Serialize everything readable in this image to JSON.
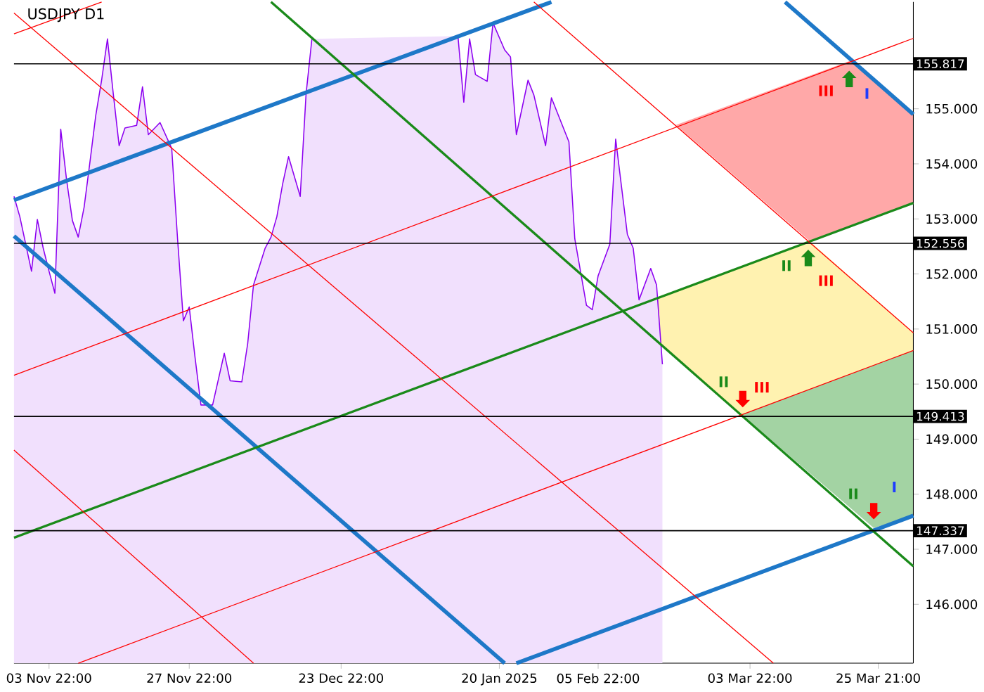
{
  "chart_data": {
    "type": "line",
    "title": "USDJPY D1",
    "xlim": [
      "2024-10-28T22:00",
      "2025-03-31T21:00"
    ],
    "ylim": [
      144.93,
      156.94
    ],
    "xticks": [
      {
        "value": "2024-11-03T22:00",
        "label": "03 Nov 22:00"
      },
      {
        "value": "2024-11-27T22:00",
        "label": "27 Nov 22:00"
      },
      {
        "value": "2024-12-23T22:00",
        "label": "23 Dec 22:00"
      },
      {
        "value": "2025-01-20",
        "label": "20 Jan 2025"
      },
      {
        "value": "2025-02-05T22:00",
        "label": "05 Feb 22:00"
      },
      {
        "value": "2025-03-03T22:00",
        "label": "03 Mar 22:00"
      },
      {
        "value": "2025-03-25T21:00",
        "label": "25 Mar 21:00"
      }
    ],
    "yticks": [
      {
        "value": 146,
        "label": "146.000"
      },
      {
        "value": 147,
        "label": "147.000"
      },
      {
        "value": 148,
        "label": "148.000"
      },
      {
        "value": 149,
        "label": "149.000"
      },
      {
        "value": 150,
        "label": "150.000"
      },
      {
        "value": 151,
        "label": "151.000"
      },
      {
        "value": 152,
        "label": "152.000"
      },
      {
        "value": 153,
        "label": "153.000"
      },
      {
        "value": 154,
        "label": "154.000"
      },
      {
        "value": 155,
        "label": "155.000"
      }
    ],
    "series": [
      {
        "type": "area",
        "color": "#8c00f0",
        "x": [
          "2024-10-28T22:00",
          "2024-10-29T22:00",
          "2024-10-31T22:00",
          "2024-11-01T22:00",
          "2024-11-02T22:00",
          "2024-11-03T22:00",
          "2024-11-04T22:00",
          "2024-11-05T22:00",
          "2024-11-06T22:00",
          "2024-11-07T22:00",
          "2024-11-08T22:00",
          "2024-11-09T22:00",
          "2024-11-10T22:00",
          "2024-11-11T22:00",
          "2024-11-12T22:00",
          "2024-11-13T22:00",
          "2024-11-14T22:00",
          "2024-11-15T22:00",
          "2024-11-16T22:00",
          "2024-11-18T22:00",
          "2024-11-19T22:00",
          "2024-11-20T22:00",
          "2024-11-22T22:00",
          "2024-11-24T22:00",
          "2024-11-25T22:00",
          "2024-11-26T22:00",
          "2024-11-27T22:00",
          "2024-11-28T22:00",
          "2024-11-29T22:00",
          "2024-12-01T22:00",
          "2024-12-03T22:00",
          "2024-12-04T22:00",
          "2024-12-06T22:00",
          "2024-12-07T22:00",
          "2024-12-08T22:00",
          "2024-12-10T22:00",
          "2024-12-11T22:00",
          "2024-12-12T22:00",
          "2024-12-13T22:00",
          "2024-12-14T22:00",
          "2024-12-16T22:00",
          "2024-12-17T22:00",
          "2024-12-18T22:00",
          "2024-12-19T22:00",
          "2024-12-20T22:00",
          "2024-12-21T22:00",
          "2025-01-01T22:00",
          "2025-01-11T22:00",
          "2025-01-12T22:00",
          "2025-01-13T22:00",
          "2025-01-14T22:00",
          "2025-01-15T22:00",
          "2025-01-17T22:00",
          "2025-01-18T22:00",
          "2025-01-20T22:00",
          "2025-01-21T22:00",
          "2025-01-22T22:00",
          "2025-01-24T22:00",
          "2025-01-25T22:00",
          "2025-01-27T22:00",
          "2025-01-28T22:00",
          "2025-01-31T22:00",
          "2025-02-01T22:00",
          "2025-02-03T22:00",
          "2025-02-04T22:00",
          "2025-02-05T22:00",
          "2025-02-07T22:00",
          "2025-02-08T22:00",
          "2025-02-10T22:00",
          "2025-02-11T22:00",
          "2025-02-12T22:00",
          "2025-02-14T22:00",
          "2025-02-15T22:00",
          "2025-02-16T22:00"
        ],
        "values": [
          153.41,
          153.04,
          152.05,
          152.99,
          152.47,
          152.05,
          151.65,
          154.63,
          153.71,
          152.97,
          152.67,
          153.21,
          154.03,
          154.88,
          155.52,
          156.27,
          155.27,
          154.33,
          154.65,
          154.7,
          155.4,
          154.53,
          154.75,
          154.28,
          152.64,
          151.15,
          151.4,
          150.48,
          149.62,
          149.62,
          150.56,
          150.06,
          150.04,
          150.73,
          151.8,
          152.47,
          152.67,
          153.04,
          153.64,
          154.13,
          153.41,
          155.27,
          156.27,
          null,
          null,
          null,
          null,
          null,
          156.32,
          155.12,
          156.27,
          155.62,
          155.5,
          156.56,
          156.07,
          155.94,
          154.53,
          155.52,
          155.25,
          154.33,
          155.2,
          154.4,
          152.64,
          151.43,
          151.35,
          151.97,
          152.54,
          154.45,
          152.72,
          152.47,
          151.53,
          152.1,
          151.8,
          150.36
        ]
      },
      {
        "color": "#1e78c8",
        "x": [
          "2024-10-28T22:00",
          "2025-01-28T22:00"
        ],
        "values": [
          153.34,
          156.94
        ]
      },
      {
        "color": "#1e78c8",
        "x": [
          "2025-01-22T22:00",
          "2025-03-31T21:00"
        ],
        "values": [
          144.93,
          147.61
        ]
      },
      {
        "color": "#1e78c8",
        "x": [
          "2024-10-28T22:00",
          "2025-01-20T22:00"
        ],
        "values": [
          152.69,
          144.93
        ]
      },
      {
        "color": "#1e78c8",
        "x": [
          "2025-03-09T22:00",
          "2025-03-31T21:00"
        ],
        "values": [
          156.94,
          154.9
        ]
      },
      {
        "color": "#1a8a1a",
        "x": [
          "2024-12-11T22:00",
          "2025-03-31T21:00"
        ],
        "values": [
          156.94,
          146.69
        ]
      },
      {
        "color": "#1a8a1a",
        "x": [
          "2024-10-28T22:00",
          "2025-03-31T21:00"
        ],
        "values": [
          147.21,
          153.29
        ]
      },
      {
        "color": "#ff0000",
        "x": [
          "2024-10-28T22:00",
          "2024-11-12T22:00"
        ],
        "values": [
          156.36,
          156.94
        ]
      },
      {
        "color": "#ff0000",
        "x": [
          "2024-10-28T22:00",
          "2025-03-31T21:00"
        ],
        "values": [
          150.16,
          156.28
        ]
      },
      {
        "color": "#ff0000",
        "x": [
          "2024-11-08T22:00",
          "2025-03-31T21:00"
        ],
        "values": [
          144.93,
          150.61
        ]
      },
      {
        "color": "#ff0000",
        "x": [
          "2024-10-28T22:00",
          "2025-03-07T22:00"
        ],
        "values": [
          156.74,
          144.93
        ]
      },
      {
        "color": "#ff0000",
        "x": [
          "2025-01-25T22:00",
          "2025-03-31T21:00"
        ],
        "values": [
          156.94,
          150.93
        ]
      },
      {
        "color": "#ff0000",
        "x": [
          "2024-10-28T22:00",
          "2024-12-08T22:00"
        ],
        "values": [
          148.8,
          144.93
        ]
      }
    ],
    "ref_lines": [
      {
        "axis": "y",
        "value": 155.817,
        "label": "155.817",
        "color": "#000000"
      },
      {
        "axis": "y",
        "value": 152.556,
        "label": "152.556",
        "color": "#000000"
      },
      {
        "axis": "y",
        "value": 149.413,
        "label": "149.413",
        "color": "#000000"
      },
      {
        "axis": "y",
        "value": 147.337,
        "label": "147.337",
        "color": "#000000"
      }
    ],
    "annotations": [
      "III",
      "I",
      "II",
      "III",
      "II",
      "III",
      "II",
      "I"
    ]
  }
}
